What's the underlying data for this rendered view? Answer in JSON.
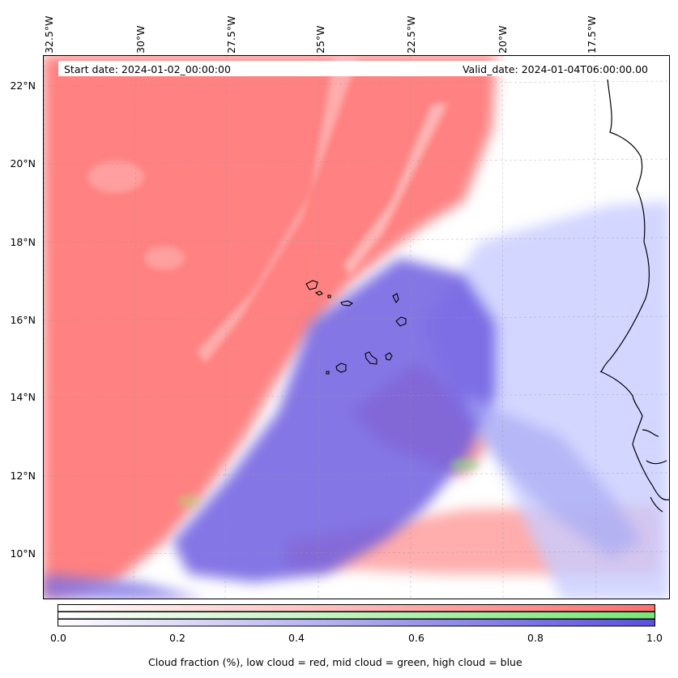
{
  "map": {
    "start_date": "Start date: 2024-01-02_00:00:00",
    "valid_date": "Valid_date: 2024-01-04T06:00:00.00",
    "lon_ticks": [
      "32.5°W",
      "30°W",
      "27.5°W",
      "25°W",
      "22.5°W",
      "20°W",
      "17.5°W"
    ],
    "lat_ticks": [
      "22°N",
      "20°N",
      "18°N",
      "16°N",
      "14°N",
      "12°N",
      "10°N"
    ],
    "colors": {
      "low_cloud": "#ff6e6e",
      "mid_cloud": "#78e678",
      "high_cloud": "#5a50dc",
      "coast": "#000000"
    }
  },
  "colorbar": {
    "ticks": [
      "0.0",
      "0.2",
      "0.4",
      "0.6",
      "0.8",
      "1.0"
    ],
    "caption": "Cloud fraction (%), low cloud = red, mid cloud = green, high cloud = blue",
    "rows": [
      "low cloud",
      "mid cloud",
      "high cloud"
    ]
  }
}
